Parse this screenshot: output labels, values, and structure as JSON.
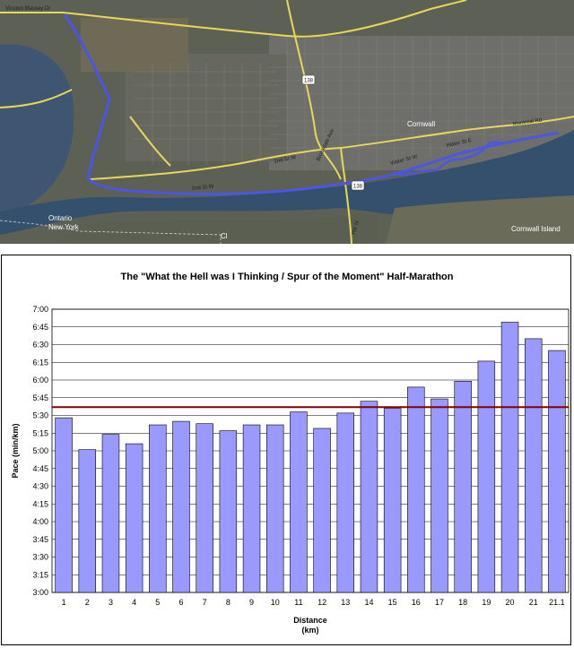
{
  "map": {
    "labels": {
      "vincent_massey": "Vincent Massey Dr",
      "brookdale": "Brookdale Ave",
      "water_st_w": "Water St W",
      "water_st_e": "Water St E",
      "second_st_w_a": "2nd St W",
      "second_st_w_b": "2nd St W",
      "montreal_rd": "Montreal Rd",
      "pitt": "Pitt St",
      "highway": "138",
      "highway_b": "138",
      "cornwall": "Cornwall",
      "cornwall_island": "Cornwall Island",
      "ontario": "Ontario",
      "new_york": "New York",
      "st_clair": "Cl"
    },
    "colors": {
      "route": "#4b55e6",
      "road": "#e9d85a",
      "water": "#3d5470",
      "land": "#5a5d4f"
    }
  },
  "chart_data": {
    "type": "bar",
    "title": "The \"What the Hell was I Thinking / Spur of the Moment\" Half-Marathon",
    "xlabel": "Distance",
    "xlabel_unit": "(km)",
    "ylabel": "Pace (min/km)",
    "categories": [
      "1",
      "2",
      "3",
      "4",
      "5",
      "6",
      "7",
      "8",
      "9",
      "10",
      "11",
      "12",
      "13",
      "14",
      "15",
      "16",
      "17",
      "18",
      "19",
      "20",
      "21",
      "21.1"
    ],
    "values_seconds": [
      328,
      301,
      314,
      306,
      322,
      325,
      323,
      317,
      322,
      322,
      333,
      319,
      332,
      342,
      336,
      354,
      344,
      359,
      376,
      409,
      395,
      385
    ],
    "average_pace_seconds": 337,
    "ylim_seconds": [
      180,
      420
    ],
    "y_ticks": [
      "3:00",
      "3:15",
      "3:30",
      "3:45",
      "4:00",
      "4:15",
      "4:30",
      "4:45",
      "5:00",
      "5:15",
      "5:30",
      "5:45",
      "6:00",
      "6:15",
      "6:30",
      "6:45",
      "7:00"
    ],
    "bar_color": "#9999ff",
    "average_line_color": "#800000",
    "gridlines": "horizontal"
  }
}
